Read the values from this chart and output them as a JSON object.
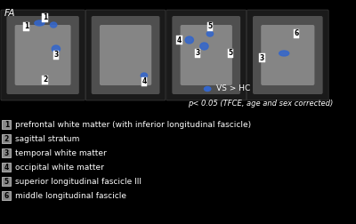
{
  "bg_color": "#000000",
  "text_color": "#ffffff",
  "fa_label": "FA",
  "legend_dot_color": "#3366cc",
  "legend_text": "VS > HC",
  "pvalue_text": "p< 0.05 (TFCE, age and sex corrected)",
  "legend_items": [
    {
      "num": "1",
      "text": "prefrontal white matter (with inferior longitudinal fascicle)"
    },
    {
      "num": "2",
      "text": "sagittal stratum"
    },
    {
      "num": "3",
      "text": "temporal white matter"
    },
    {
      "num": "4",
      "text": "occipital white matter"
    },
    {
      "num": "5",
      "text": "superior longitudinal fascicle III"
    },
    {
      "num": "6",
      "text": "middle longitudinal fascicle"
    }
  ],
  "brain_images_placeholder": true,
  "num_box_color": "#888888",
  "num_text_color": "#000000",
  "font_size_legend": 6.5,
  "font_size_fa": 7.5,
  "font_size_pvalue": 6.0
}
